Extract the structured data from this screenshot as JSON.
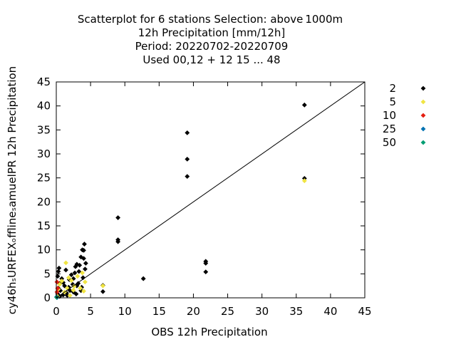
{
  "chart_data": {
    "type": "scatter",
    "title_lines": [
      "Scatterplot for    6 stations Selection: above 1000m",
      "12h Precipitation [mm/12h]",
      "Period: 20220702-20220709",
      "Used  00,12  + 12 15 ... 48"
    ],
    "xlabel": "OBS 12h Precipitation",
    "ylabel": "cy46hₛURFEXₒfflineₛamuelPR 12h Precipitation",
    "xlim": [
      0,
      45
    ],
    "ylim": [
      0,
      45
    ],
    "xticks": [
      0,
      5,
      10,
      15,
      20,
      25,
      30,
      35,
      40,
      45
    ],
    "yticks": [
      0,
      5,
      10,
      15,
      20,
      25,
      30,
      35,
      40,
      45
    ],
    "grid": false,
    "diagonal_line": true,
    "legend_position": "right",
    "series": [
      {
        "name": "2",
        "color": "#000000",
        "points": [
          [
            0.2,
            4.5
          ],
          [
            0.3,
            5.5
          ],
          [
            0.4,
            6.2
          ],
          [
            0.5,
            3.0
          ],
          [
            0.3,
            2.0
          ],
          [
            0.2,
            0.8
          ],
          [
            0.6,
            1.5
          ],
          [
            0.8,
            4.0
          ],
          [
            1.0,
            3.2
          ],
          [
            1.2,
            2.5
          ],
          [
            1.4,
            5.8
          ],
          [
            1.5,
            1.0
          ],
          [
            1.6,
            0.5
          ],
          [
            1.8,
            2.2
          ],
          [
            1.9,
            3.8
          ],
          [
            2.0,
            1.5
          ],
          [
            2.2,
            4.8
          ],
          [
            2.4,
            2.8
          ],
          [
            2.5,
            1.2
          ],
          [
            2.7,
            5.2
          ],
          [
            2.8,
            6.5
          ],
          [
            2.9,
            0.8
          ],
          [
            3.0,
            7.0
          ],
          [
            3.2,
            3.0
          ],
          [
            3.3,
            5.5
          ],
          [
            3.4,
            6.8
          ],
          [
            3.6,
            8.5
          ],
          [
            3.7,
            2.2
          ],
          [
            3.8,
            10.0
          ],
          [
            3.9,
            4.2
          ],
          [
            4.0,
            8.2
          ],
          [
            4.1,
            11.2
          ],
          [
            4.2,
            6.0
          ],
          [
            4.3,
            7.2
          ],
          [
            4.0,
            9.9
          ],
          [
            3.6,
            1.5
          ],
          [
            3.0,
            2.5
          ],
          [
            2.5,
            4.0
          ],
          [
            1.0,
            0.6
          ],
          [
            0.5,
            0.3
          ],
          [
            6.8,
            2.6
          ],
          [
            6.8,
            1.3
          ],
          [
            9.0,
            16.7
          ],
          [
            9.0,
            12.1
          ],
          [
            9.0,
            11.7
          ],
          [
            12.7,
            4.0
          ],
          [
            19.1,
            34.4
          ],
          [
            19.1,
            28.9
          ],
          [
            19.1,
            25.3
          ],
          [
            21.8,
            7.6
          ],
          [
            21.8,
            7.2
          ],
          [
            21.8,
            5.4
          ],
          [
            36.2,
            40.2
          ],
          [
            36.2,
            24.9
          ]
        ]
      },
      {
        "name": "5",
        "color": "#f0e442",
        "points": [
          [
            0.2,
            0.3
          ],
          [
            0.3,
            1.8
          ],
          [
            0.5,
            2.8
          ],
          [
            0.8,
            3.5
          ],
          [
            1.2,
            1.2
          ],
          [
            1.4,
            7.3
          ],
          [
            1.6,
            2.0
          ],
          [
            1.8,
            4.2
          ],
          [
            2.0,
            0.5
          ],
          [
            2.2,
            3.6
          ],
          [
            2.5,
            1.6
          ],
          [
            2.6,
            2.4
          ],
          [
            3.1,
            4.5
          ],
          [
            3.5,
            2.0
          ],
          [
            3.8,
            5.2
          ],
          [
            4.0,
            1.4
          ],
          [
            4.2,
            3.3
          ],
          [
            6.8,
            2.5
          ],
          [
            36.2,
            24.4
          ]
        ]
      },
      {
        "name": "10",
        "color": "#e51e10",
        "points": [
          [
            0.1,
            3.3
          ],
          [
            0.2,
            2.0
          ],
          [
            0.1,
            1.2
          ]
        ]
      },
      {
        "name": "25",
        "color": "#0072b2",
        "points": [
          [
            0.05,
            0.2
          ],
          [
            0.1,
            0.05
          ]
        ]
      },
      {
        "name": "50",
        "color": "#009e73",
        "points": [
          [
            0.05,
            0.1
          ]
        ]
      }
    ]
  }
}
